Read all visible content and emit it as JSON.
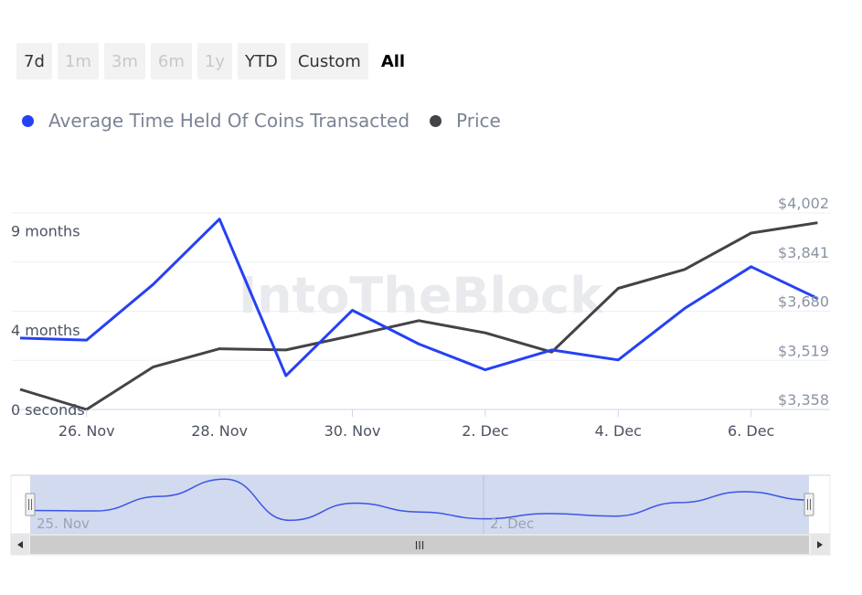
{
  "range_buttons": [
    {
      "label": "7d",
      "state": "normal"
    },
    {
      "label": "1m",
      "state": "disabled"
    },
    {
      "label": "3m",
      "state": "disabled"
    },
    {
      "label": "6m",
      "state": "disabled"
    },
    {
      "label": "1y",
      "state": "disabled"
    },
    {
      "label": "YTD",
      "state": "normal"
    },
    {
      "label": "Custom",
      "state": "normal"
    },
    {
      "label": "All",
      "state": "active"
    }
  ],
  "watermark": "IntoTheBlock",
  "navigator": {
    "labels": [
      "25. Nov",
      "2. Dec"
    ],
    "scroll_grip": "III"
  },
  "chart_data": {
    "type": "line",
    "x": [
      "25. Nov",
      "26. Nov",
      "27. Nov",
      "28. Nov",
      "29. Nov",
      "30. Nov",
      "1. Dec",
      "2. Dec",
      "3. Dec",
      "4. Dec",
      "5. Dec",
      "6. Dec",
      "7. Dec"
    ],
    "x_tick_labels": [
      "26. Nov",
      "28. Nov",
      "30. Nov",
      "2. Dec",
      "4. Dec",
      "6. Dec"
    ],
    "y_left_tick_labels": [
      "0 seconds",
      "4 months",
      "9 months"
    ],
    "y_right_tick_labels": [
      "$3,358",
      "$3,519",
      "$3,680",
      "$3,841",
      "$4,002"
    ],
    "series": [
      {
        "name": "Average Time Held Of Coins Transacted",
        "color": "#2541f4",
        "axis": "left",
        "unit": "months",
        "values": [
          3.6,
          3.5,
          6.3,
          9.6,
          1.7,
          5.0,
          3.3,
          2.0,
          3.0,
          2.5,
          5.1,
          7.2,
          5.6
        ]
      },
      {
        "name": "Price",
        "color": "#434348",
        "axis": "right",
        "unit": "USD",
        "values": [
          3424,
          3358,
          3497,
          3557,
          3553,
          3600,
          3649,
          3609,
          3546,
          3755,
          3817,
          3936,
          3970
        ]
      }
    ],
    "y_left_ticks": [
      0,
      4,
      9
    ],
    "ylim_left": [
      0,
      9.91
    ],
    "y_right_ticks": [
      3358,
      3519,
      3680,
      3841,
      4002
    ],
    "ylim_right": [
      3358,
      4002
    ],
    "grid": true,
    "legend_position": "top-left"
  }
}
